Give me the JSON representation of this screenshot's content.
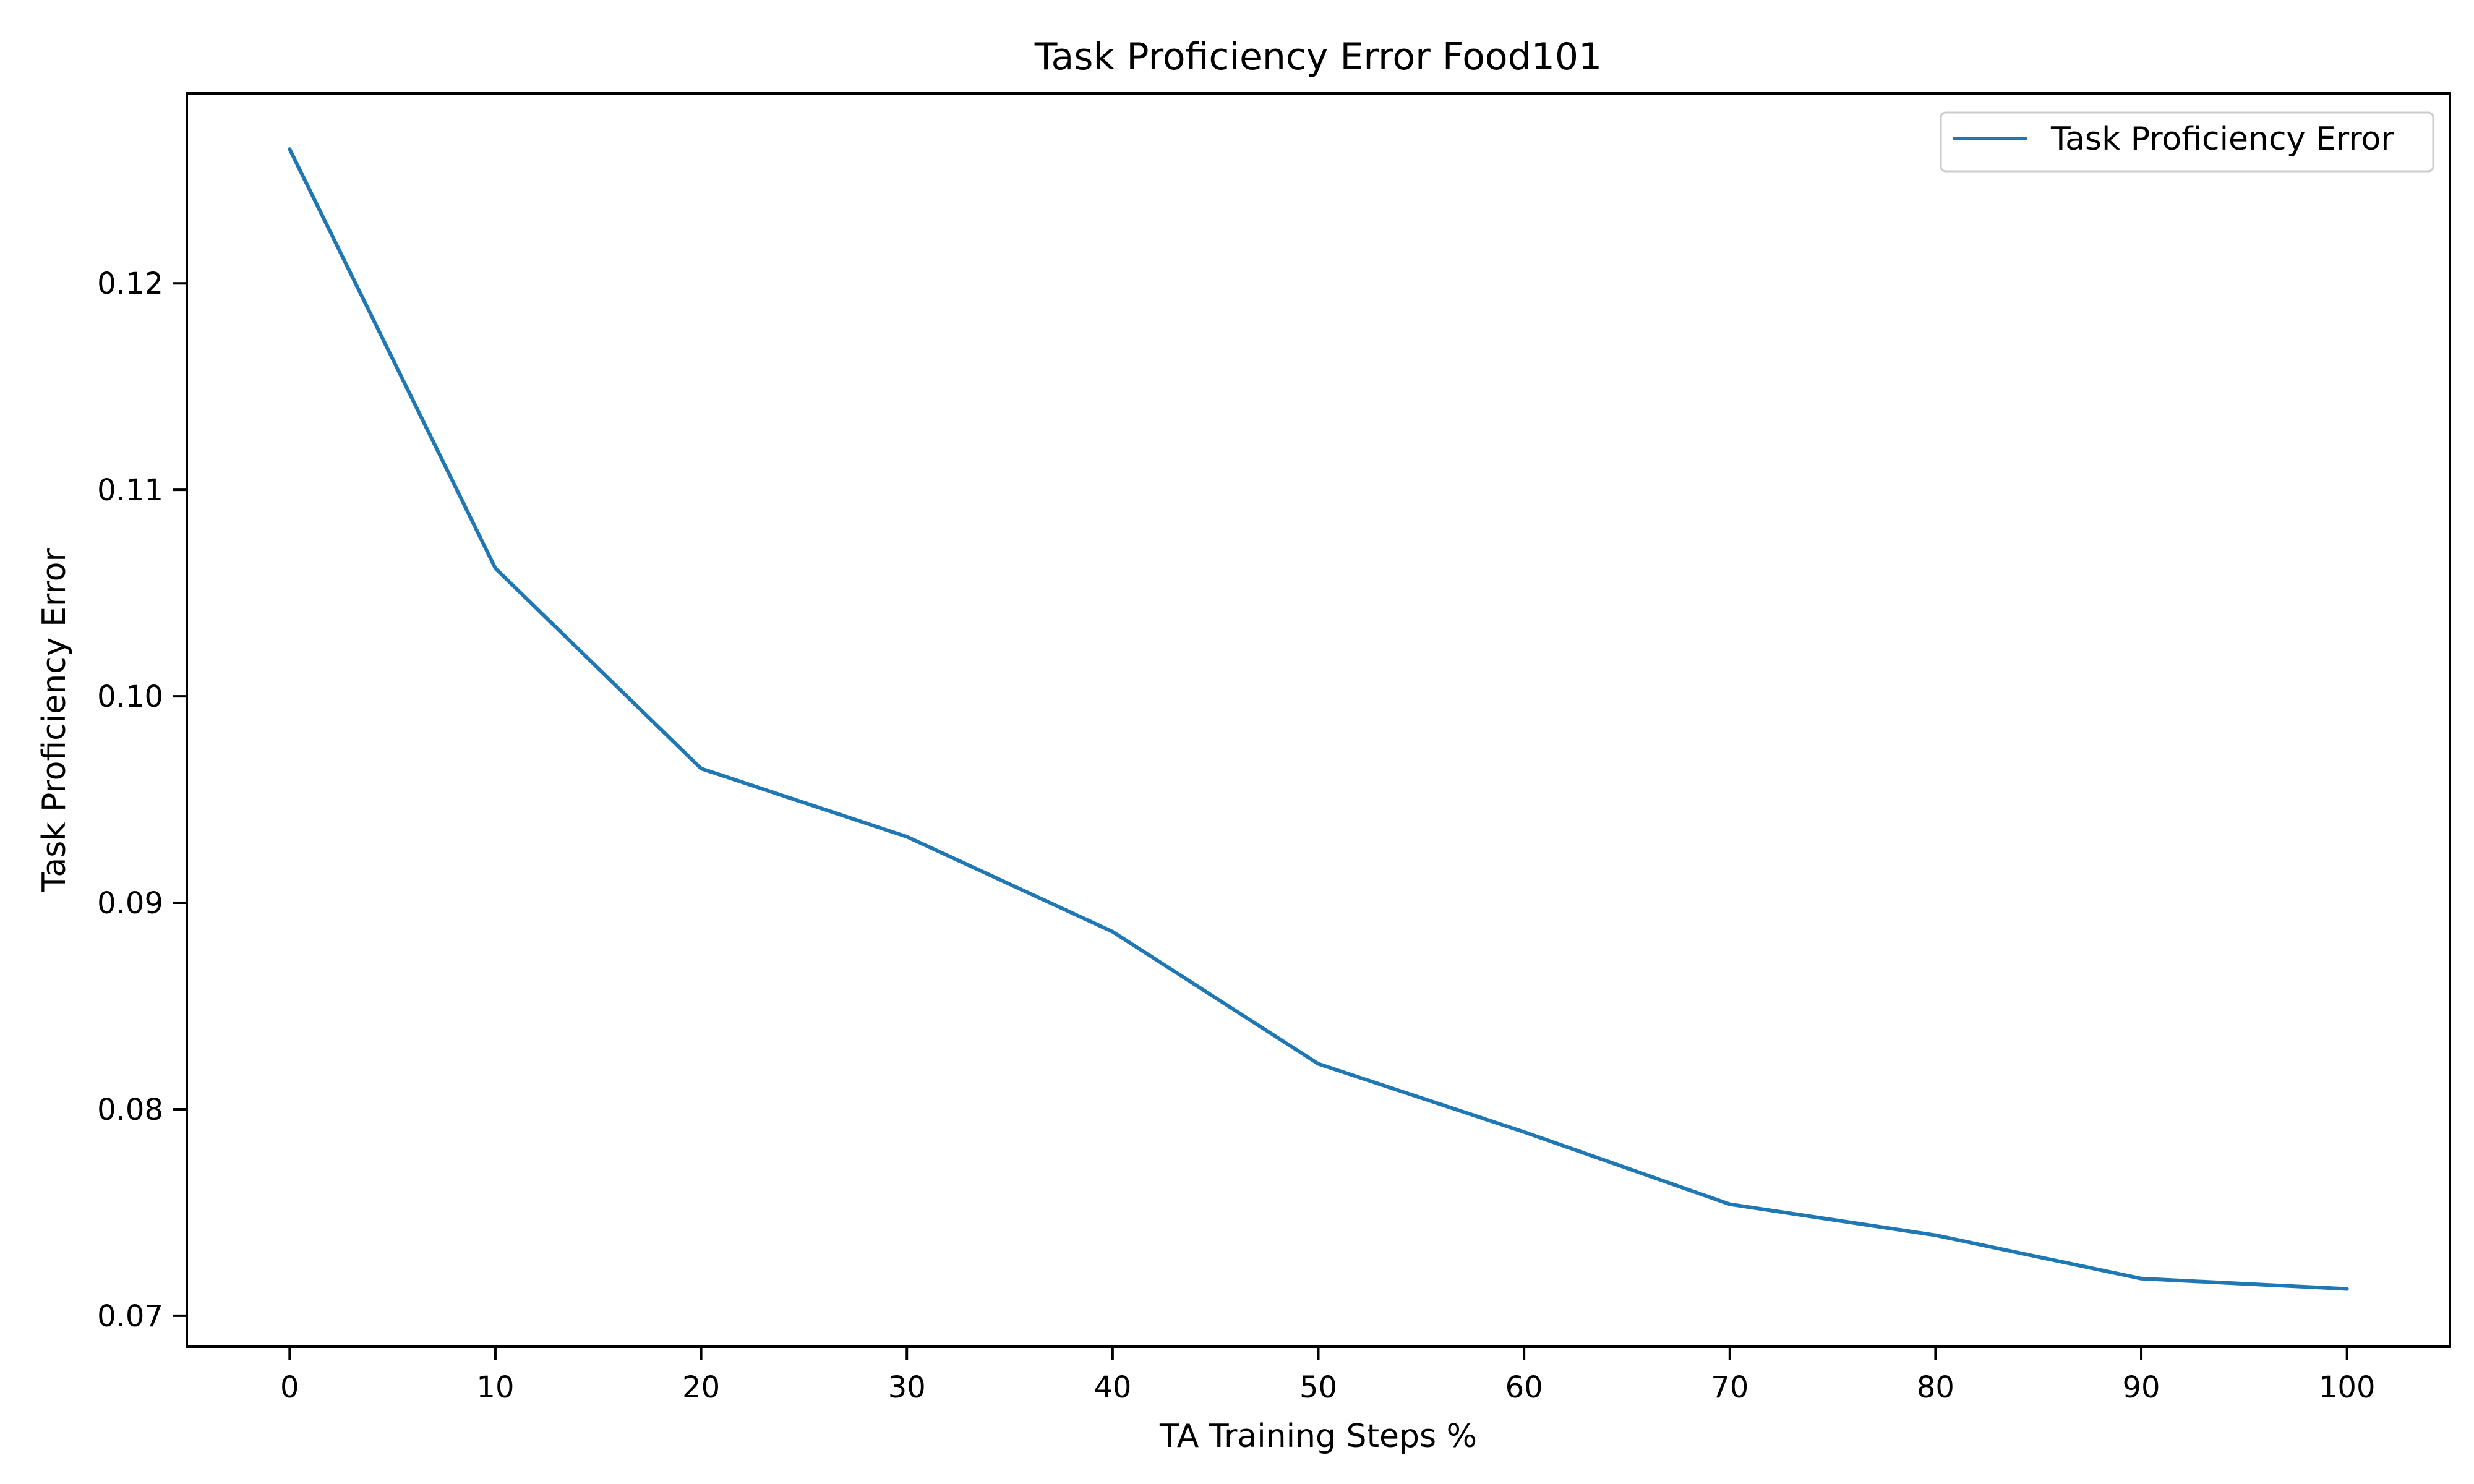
{
  "chart_data": {
    "type": "line",
    "title": "Task Proficiency Error Food101",
    "xlabel": "TA Training Steps %",
    "ylabel": "Task Proficiency Error",
    "x": [
      0,
      10,
      20,
      30,
      40,
      50,
      60,
      70,
      80,
      90,
      100
    ],
    "xticks": [
      "0",
      "10",
      "20",
      "30",
      "40",
      "50",
      "60",
      "70",
      "80",
      "90",
      "100"
    ],
    "yticks": [
      "0.07",
      "0.08",
      "0.09",
      "0.10",
      "0.11",
      "0.12"
    ],
    "xlim": [
      -5,
      105
    ],
    "ylim": [
      0.0685,
      0.1292
    ],
    "grid": false,
    "legend_position": "top-right",
    "series": [
      {
        "name": "Task Proficiency Error",
        "color": "#1f77b4",
        "values": [
          0.1265,
          0.1062,
          0.0965,
          0.0932,
          0.0886,
          0.0822,
          0.0789,
          0.0754,
          0.0739,
          0.0718,
          0.0713
        ]
      }
    ]
  }
}
